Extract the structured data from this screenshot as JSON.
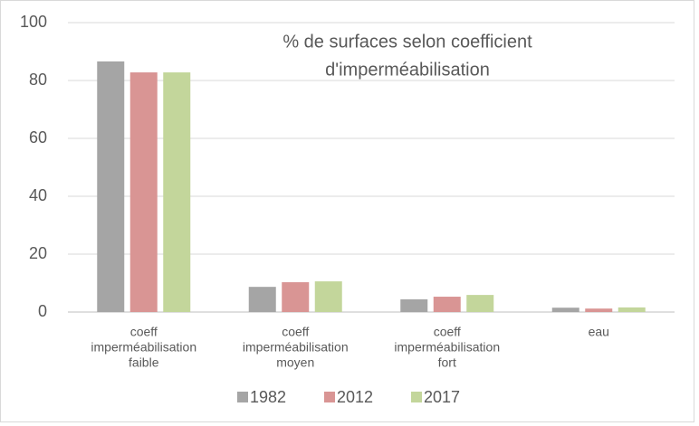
{
  "chart_data": {
    "type": "bar",
    "title": [
      "% de surfaces selon coefficient",
      "d'imperméabilisation"
    ],
    "categories": [
      [
        "coeff",
        "imperméabilisation",
        "faible"
      ],
      [
        "coeff",
        "imperméabilisation",
        "moyen"
      ],
      [
        "coeff",
        "imperméabilisation",
        "fort"
      ],
      [
        "eau"
      ]
    ],
    "series": [
      {
        "name": "1982",
        "color": "#a5a5a5",
        "values": [
          86.6,
          8.7,
          4.4,
          1.5
        ]
      },
      {
        "name": "2012",
        "color": "#d99594",
        "values": [
          82.8,
          10.3,
          5.3,
          1.2
        ]
      },
      {
        "name": "2017",
        "color": "#c3d69b",
        "values": [
          82.8,
          10.6,
          5.9,
          1.6
        ]
      }
    ],
    "ylim": [
      0,
      100
    ],
    "yticks": [
      0,
      20,
      40,
      60,
      80,
      100
    ],
    "grid": true,
    "legend": "bottom"
  }
}
